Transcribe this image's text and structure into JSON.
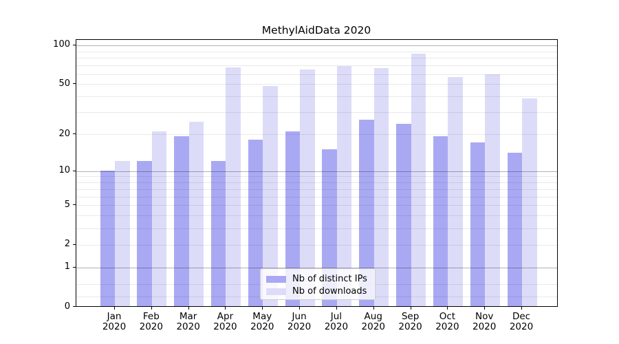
{
  "title": "MethylAidData 2020",
  "colors": {
    "ips_bar": "#a9a9f3",
    "downloads_bar": "#dcdcf9",
    "grid_major": "rgba(0,0,0,0.30)",
    "grid_minor": "rgba(0,0,0,0.085)",
    "spine": "#000000",
    "text": "#000000"
  },
  "legend": {
    "items": [
      {
        "label": "Nb of distinct IPs",
        "series": "ips"
      },
      {
        "label": "Nb of downloads",
        "series": "downloads"
      }
    ]
  },
  "chart_data": {
    "type": "bar",
    "title": "MethylAidData 2020",
    "categories": [
      "Jan",
      "Feb",
      "Mar",
      "Apr",
      "May",
      "Jun",
      "Jul",
      "Aug",
      "Sep",
      "Oct",
      "Nov",
      "Dec"
    ],
    "category_year": "2020",
    "series": [
      {
        "name": "Nb of distinct IPs",
        "color": "#a9a9f3",
        "values": [
          10,
          12,
          19,
          12,
          18,
          21,
          15,
          26,
          24,
          19,
          17,
          14
        ]
      },
      {
        "name": "Nb of downloads",
        "color": "#dcdcf9",
        "values": [
          12,
          21,
          25,
          67,
          48,
          64,
          68,
          66,
          85,
          56,
          59,
          38
        ]
      }
    ],
    "yscale": "log1p",
    "yticks": [
      0,
      1,
      2,
      5,
      10,
      20,
      50,
      100
    ],
    "grid_major_at": [
      1,
      10,
      100
    ],
    "grid_minor_at": [
      0.2,
      0.5,
      2,
      3,
      4,
      5,
      6,
      7,
      8,
      9,
      20,
      30,
      40,
      50,
      60,
      70,
      80,
      90
    ],
    "ylim": [
      0,
      110.3
    ],
    "xlabel": "",
    "ylabel": "",
    "grid": "both",
    "legend_position": "lower center"
  }
}
